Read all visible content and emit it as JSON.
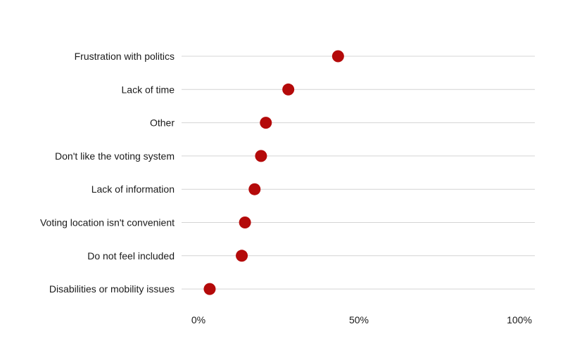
{
  "chart_data": {
    "type": "scatter",
    "orientation": "horizontal-dot-plot",
    "title": "",
    "xlabel": "",
    "ylabel": "",
    "xlim": [
      0,
      100
    ],
    "x_ticks": [
      {
        "value": 0,
        "label": "0%"
      },
      {
        "value": 50,
        "label": "50%"
      },
      {
        "value": 100,
        "label": "100%"
      }
    ],
    "categories": [
      "Frustration with politics",
      "Lack of time",
      "Other",
      "Don't like the voting system",
      "Lack of information",
      "Voting location isn't convenient",
      "Do not feel included",
      "Disabilities or mobility issues"
    ],
    "values": [
      43.5,
      28,
      21,
      19.5,
      17.5,
      14.5,
      13.5,
      3.5
    ],
    "grid": "horizontal",
    "legend": "none",
    "dot_color": "#b40a0a",
    "gridline_color": "#d4d4d4"
  }
}
